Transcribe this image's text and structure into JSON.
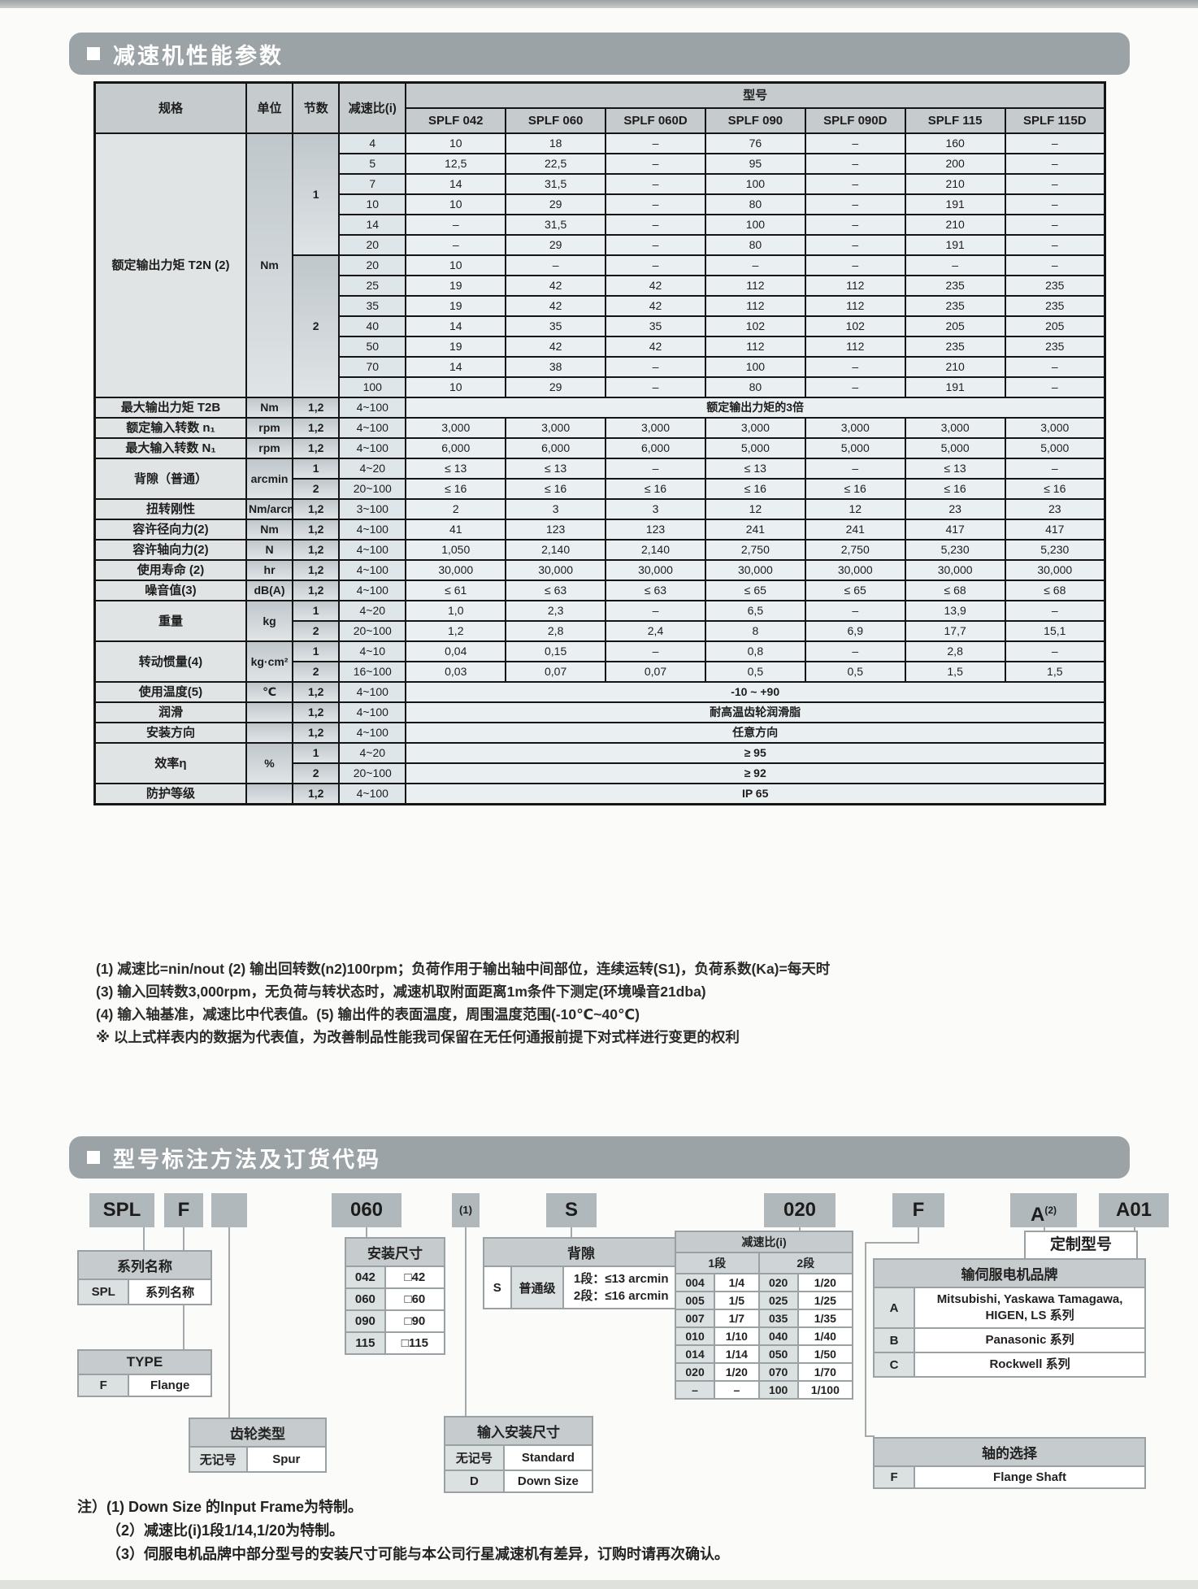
{
  "page": {
    "bg": "#fbfbf9",
    "bar_color": "#9ba3a7",
    "table_border": "#151515"
  },
  "section1": {
    "title": "减速机性能参数",
    "table": {
      "col_headers": {
        "spec": "规格",
        "unit": "单位",
        "stages": "节数",
        "ratio": "减速比(i)",
        "model_group": "型号",
        "models": [
          "SPLF 042",
          "SPLF 060",
          "SPLF 060D",
          "SPLF 090",
          "SPLF 090D",
          "SPLF 115",
          "SPLF 115D"
        ]
      },
      "torque": {
        "spec": "额定输出力矩 T2N (2)",
        "unit": "Nm",
        "stage1_label": "1",
        "stage2_label": "2",
        "stage1_rows": [
          {
            "ratio": "4",
            "values": [
              "10",
              "18",
              "–",
              "76",
              "–",
              "160",
              "–"
            ]
          },
          {
            "ratio": "5",
            "values": [
              "12,5",
              "22,5",
              "–",
              "95",
              "–",
              "200",
              "–"
            ]
          },
          {
            "ratio": "7",
            "values": [
              "14",
              "31,5",
              "–",
              "100",
              "–",
              "210",
              "–"
            ]
          },
          {
            "ratio": "10",
            "values": [
              "10",
              "29",
              "–",
              "80",
              "–",
              "191",
              "–"
            ]
          },
          {
            "ratio": "14",
            "values": [
              "–",
              "31,5",
              "–",
              "100",
              "–",
              "210",
              "–"
            ]
          },
          {
            "ratio": "20",
            "values": [
              "–",
              "29",
              "–",
              "80",
              "–",
              "191",
              "–"
            ]
          }
        ],
        "stage2_rows": [
          {
            "ratio": "20",
            "values": [
              "10",
              "–",
              "–",
              "–",
              "–",
              "–",
              "–"
            ]
          },
          {
            "ratio": "25",
            "values": [
              "19",
              "42",
              "42",
              "112",
              "112",
              "235",
              "235"
            ]
          },
          {
            "ratio": "35",
            "values": [
              "19",
              "42",
              "42",
              "112",
              "112",
              "235",
              "235"
            ]
          },
          {
            "ratio": "40",
            "values": [
              "14",
              "35",
              "35",
              "102",
              "102",
              "205",
              "205"
            ]
          },
          {
            "ratio": "50",
            "values": [
              "19",
              "42",
              "42",
              "112",
              "112",
              "235",
              "235"
            ]
          },
          {
            "ratio": "70",
            "values": [
              "14",
              "38",
              "–",
              "100",
              "–",
              "210",
              "–"
            ]
          },
          {
            "ratio": "100",
            "values": [
              "10",
              "29",
              "–",
              "80",
              "–",
              "191",
              "–"
            ]
          }
        ]
      },
      "spec_rows": [
        {
          "spec": "最大输出力矩 T2B",
          "unit": "Nm",
          "stages": "1,2",
          "ratio": "4~100",
          "span": "额定输出力矩的3倍"
        },
        {
          "spec": "额定输入转数 n₁",
          "unit": "rpm",
          "stages": "1,2",
          "ratio": "4~100",
          "values": [
            "3,000",
            "3,000",
            "3,000",
            "3,000",
            "3,000",
            "3,000",
            "3,000"
          ]
        },
        {
          "spec": "最大输入转数 N₁",
          "unit": "rpm",
          "stages": "1,2",
          "ratio": "4~100",
          "values": [
            "6,000",
            "6,000",
            "6,000",
            "5,000",
            "5,000",
            "5,000",
            "5,000"
          ]
        },
        {
          "spec": "背隙（普通）",
          "unit": "arcmin",
          "sub": [
            {
              "stages": "1",
              "ratio": "4~20",
              "values": [
                "≤ 13",
                "≤ 13",
                "–",
                "≤ 13",
                "–",
                "≤ 13",
                "–"
              ]
            },
            {
              "stages": "2",
              "ratio": "20~100",
              "values": [
                "≤ 16",
                "≤ 16",
                "≤ 16",
                "≤ 16",
                "≤ 16",
                "≤ 16",
                "≤ 16"
              ]
            }
          ]
        },
        {
          "spec": "扭转刚性",
          "unit": "Nm/arcmin",
          "stages": "1,2",
          "ratio": "3~100",
          "values": [
            "2",
            "3",
            "3",
            "12",
            "12",
            "23",
            "23"
          ]
        },
        {
          "spec": "容许径向力(2)",
          "unit": "Nm",
          "stages": "1,2",
          "ratio": "4~100",
          "values": [
            "41",
            "123",
            "123",
            "241",
            "241",
            "417",
            "417"
          ]
        },
        {
          "spec": "容许轴向力(2)",
          "unit": "N",
          "stages": "1,2",
          "ratio": "4~100",
          "values": [
            "1,050",
            "2,140",
            "2,140",
            "2,750",
            "2,750",
            "5,230",
            "5,230"
          ]
        },
        {
          "spec": "使用寿命 (2)",
          "unit": "hr",
          "stages": "1,2",
          "ratio": "4~100",
          "values": [
            "30,000",
            "30,000",
            "30,000",
            "30,000",
            "30,000",
            "30,000",
            "30,000"
          ]
        },
        {
          "spec": "噪音值(3)",
          "unit": "dB(A)",
          "stages": "1,2",
          "ratio": "4~100",
          "values": [
            "≤ 61",
            "≤ 63",
            "≤ 63",
            "≤ 65",
            "≤ 65",
            "≤ 68",
            "≤ 68"
          ]
        },
        {
          "spec": "重量",
          "unit": "kg",
          "sub": [
            {
              "stages": "1",
              "ratio": "4~20",
              "values": [
                "1,0",
                "2,3",
                "–",
                "6,5",
                "–",
                "13,9",
                "–"
              ]
            },
            {
              "stages": "2",
              "ratio": "20~100",
              "values": [
                "1,2",
                "2,8",
                "2,4",
                "8",
                "6,9",
                "17,7",
                "15,1"
              ]
            }
          ]
        },
        {
          "spec": "转动惯量(4)",
          "unit": "kg·cm²",
          "sub": [
            {
              "stages": "1",
              "ratio": "4~10",
              "values": [
                "0,04",
                "0,15",
                "–",
                "0,8",
                "–",
                "2,8",
                "–"
              ]
            },
            {
              "stages": "2",
              "ratio": "16~100",
              "values": [
                "0,03",
                "0,07",
                "0,07",
                "0,5",
                "0,5",
                "1,5",
                "1,5"
              ]
            }
          ]
        },
        {
          "spec": "使用温度(5)",
          "unit": "℃",
          "stages": "1,2",
          "ratio": "4~100",
          "span": "-10 ~ +90"
        },
        {
          "spec": "润滑",
          "unit": "",
          "stages": "1,2",
          "ratio": "4~100",
          "span": "耐高温齿轮润滑脂"
        },
        {
          "spec": "安装方向",
          "unit": "",
          "stages": "1,2",
          "ratio": "4~100",
          "span": "任意方向"
        },
        {
          "spec": "效率η",
          "unit": "%",
          "sub": [
            {
              "stages": "1",
              "ratio": "4~20",
              "span": "≥ 95"
            },
            {
              "stages": "2",
              "ratio": "20~100",
              "span": "≥ 92"
            }
          ]
        },
        {
          "spec": "防护等级",
          "unit": "",
          "stages": "1,2",
          "ratio": "4~100",
          "span": "IP 65"
        }
      ]
    },
    "notes": [
      "(1) 减速比=nin/nout (2) 输出回转数(n2)100rpm；负荷作用于输出轴中间部位，连续运转(S1)，负荷系数(Ka)=每天时",
      "(3) 输入回转数3,000rpm，无负荷与转状态时，减速机取附面距离1m条件下测定(环境噪音21dba)",
      "(4) 输入轴基准，减速比中代表值。(5) 输出件的表面温度，周围温度范围(-10℃~40℃)",
      "※ 以上式样表内的数据为代表值，为改善制品性能我司保留在无任何通报前提下对式样进行变更的权利"
    ]
  },
  "section2": {
    "title": "型号标注方法及订货代码",
    "code_boxes": [
      {
        "label": "SPL"
      },
      {
        "label": "F"
      },
      {
        "label": ""
      },
      {
        "label": "060"
      },
      {
        "label": "(1)"
      },
      {
        "label": "S"
      },
      {
        "label": "020"
      },
      {
        "label": "F"
      },
      {
        "label": "A",
        "sup": "(2)"
      },
      {
        "label": "A01"
      }
    ],
    "series": {
      "header": "系列名称",
      "code": "SPL",
      "desc": "系列名称"
    },
    "type": {
      "header": "TYPE",
      "code": "F",
      "desc": "Flange"
    },
    "gear": {
      "header": "齿轮类型",
      "code": "无记号",
      "desc": "Spur"
    },
    "mount": {
      "header": "安装尺寸",
      "rows": [
        [
          "042",
          "□42"
        ],
        [
          "060",
          "□60"
        ],
        [
          "090",
          "□90"
        ],
        [
          "115",
          "□115"
        ]
      ]
    },
    "backlash": {
      "header": "背隙",
      "code": "S",
      "grade": "普通级",
      "line1": "1段：≤13 arcmin",
      "line2": "2段：≤16 arcmin"
    },
    "input_mount": {
      "header": "输入安装尺寸",
      "rows": [
        [
          "无记号",
          "Standard"
        ],
        [
          "D",
          "Down Size"
        ]
      ]
    },
    "ratio": {
      "header": "减速比(i)",
      "col1": "1段",
      "col2": "2段",
      "rows": [
        [
          "004",
          "1/4",
          "020",
          "1/20"
        ],
        [
          "005",
          "1/5",
          "025",
          "1/25"
        ],
        [
          "007",
          "1/7",
          "035",
          "1/35"
        ],
        [
          "010",
          "1/10",
          "040",
          "1/40"
        ],
        [
          "014",
          "1/14",
          "050",
          "1/50"
        ],
        [
          "020",
          "1/20",
          "070",
          "1/70"
        ],
        [
          "–",
          "–",
          "100",
          "1/100"
        ]
      ]
    },
    "custom": {
      "label": "定制型号"
    },
    "brand": {
      "header": "输伺服电机品牌",
      "rows": [
        [
          "A",
          "Mitsubishi, Yaskawa Tamagawa, HIGEN, LS 系列"
        ],
        [
          "B",
          "Panasonic 系列"
        ],
        [
          "C",
          "Rockwell 系列"
        ]
      ]
    },
    "shaft": {
      "header": "轴的选择",
      "rows": [
        [
          "F",
          "Flange Shaft"
        ]
      ]
    },
    "notes_prefix": "注）",
    "notes": [
      "(1) Down Size 的Input Frame为特制。",
      "（2）减速比(i)1段1/14,1/20为特制。",
      "（3）伺服电机品牌中部分型号的安装尺寸可能与本公司行星减速机有差异，订购时请再次确认。"
    ]
  }
}
